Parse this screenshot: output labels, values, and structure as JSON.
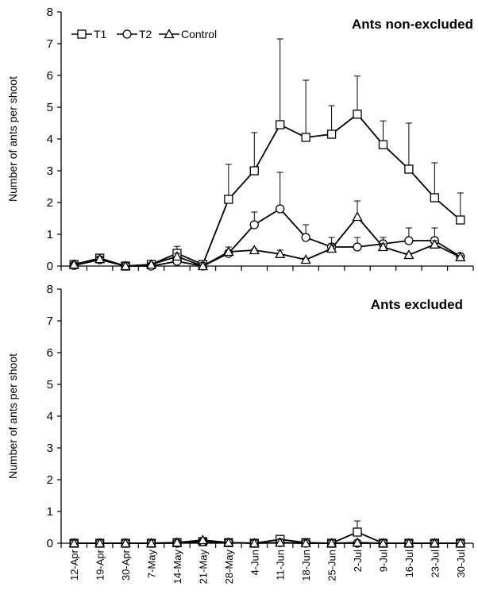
{
  "chart_data": [
    {
      "type": "line",
      "title": "Ants non-excluded",
      "xlabel": "",
      "ylabel": "Number of ants per shoot",
      "ylim": [
        0,
        8
      ],
      "yticks": [
        0,
        1,
        2,
        3,
        4,
        5,
        6,
        7,
        8
      ],
      "grid": false,
      "legend": "top-left",
      "categories": [
        "12-Apr",
        "19-Apr",
        "30-Apr",
        "7-May",
        "14-May",
        "21-May",
        "28-May",
        "4-Jun",
        "11-Jun",
        "18-Jun",
        "25-Jun",
        "2-Jul",
        "9-Jul",
        "16-Jul",
        "23-Jul",
        "30-Jul"
      ],
      "series": [
        {
          "name": "T1",
          "marker": "square",
          "values": [
            0.05,
            0.25,
            0.0,
            0.05,
            0.4,
            0.05,
            2.1,
            3.0,
            4.45,
            4.05,
            4.15,
            4.78,
            3.82,
            3.05,
            2.15,
            1.45
          ],
          "error": [
            0.05,
            0.1,
            0.0,
            0.05,
            0.22,
            0.05,
            1.1,
            1.2,
            2.7,
            1.8,
            0.9,
            1.2,
            0.75,
            1.45,
            1.1,
            0.85
          ]
        },
        {
          "name": "T2",
          "marker": "circle",
          "values": [
            0.02,
            0.2,
            0.0,
            0.0,
            0.15,
            0.0,
            0.4,
            1.3,
            1.8,
            0.9,
            0.6,
            0.6,
            0.7,
            0.8,
            0.8,
            0.3
          ],
          "error": [
            0.02,
            0.1,
            0.0,
            0.0,
            0.05,
            0.0,
            0.1,
            0.4,
            1.15,
            0.4,
            0.3,
            0.3,
            0.2,
            0.4,
            0.4,
            0.05
          ]
        },
        {
          "name": "Control",
          "marker": "triangle",
          "values": [
            0.05,
            0.22,
            0.0,
            0.05,
            0.3,
            0.0,
            0.45,
            0.5,
            0.38,
            0.2,
            0.55,
            1.55,
            0.6,
            0.35,
            0.68,
            0.28
          ],
          "error": [
            0.02,
            0.05,
            0.0,
            0.03,
            0.1,
            0.0,
            0.15,
            0.05,
            0.12,
            0.05,
            0.15,
            0.5,
            0.1,
            0.05,
            0.12,
            0.05
          ]
        }
      ]
    },
    {
      "type": "line",
      "title": "Ants excluded",
      "xlabel": "",
      "ylabel": "Number of ants per shoot",
      "ylim": [
        0,
        8
      ],
      "yticks": [
        0,
        1,
        2,
        3,
        4,
        5,
        6,
        7,
        8
      ],
      "grid": false,
      "categories": [
        "12-Apr",
        "19-Apr",
        "30-Apr",
        "7-May",
        "14-May",
        "21-May",
        "28-May",
        "4-Jun",
        "11-Jun",
        "18-Jun",
        "25-Jun",
        "2-Jul",
        "9-Jul",
        "16-Jul",
        "23-Jul",
        "30-Jul"
      ],
      "series": [
        {
          "name": "T1",
          "marker": "square",
          "values": [
            0,
            0,
            0,
            0,
            0.02,
            0.05,
            0.02,
            0,
            0.12,
            0.02,
            0,
            0.35,
            0,
            0,
            0,
            0
          ],
          "error": [
            0,
            0,
            0,
            0,
            0,
            0.05,
            0,
            0,
            0,
            0,
            0,
            0.35,
            0,
            0,
            0,
            0
          ]
        },
        {
          "name": "T2",
          "marker": "circle",
          "values": [
            0,
            0,
            0,
            0,
            0,
            0.05,
            0.02,
            0,
            0.02,
            0,
            0,
            0,
            0,
            0,
            0,
            0
          ],
          "error": [
            0,
            0,
            0,
            0,
            0,
            0,
            0,
            0,
            0,
            0,
            0,
            0,
            0,
            0,
            0,
            0
          ]
        },
        {
          "name": "Control",
          "marker": "triangle",
          "values": [
            0,
            0,
            0,
            0,
            0.02,
            0.1,
            0.02,
            0,
            0.02,
            0,
            0,
            0.02,
            0,
            0,
            0,
            0
          ],
          "error": [
            0,
            0,
            0,
            0,
            0,
            0,
            0,
            0,
            0,
            0,
            0,
            0,
            0,
            0,
            0,
            0
          ]
        }
      ]
    }
  ]
}
